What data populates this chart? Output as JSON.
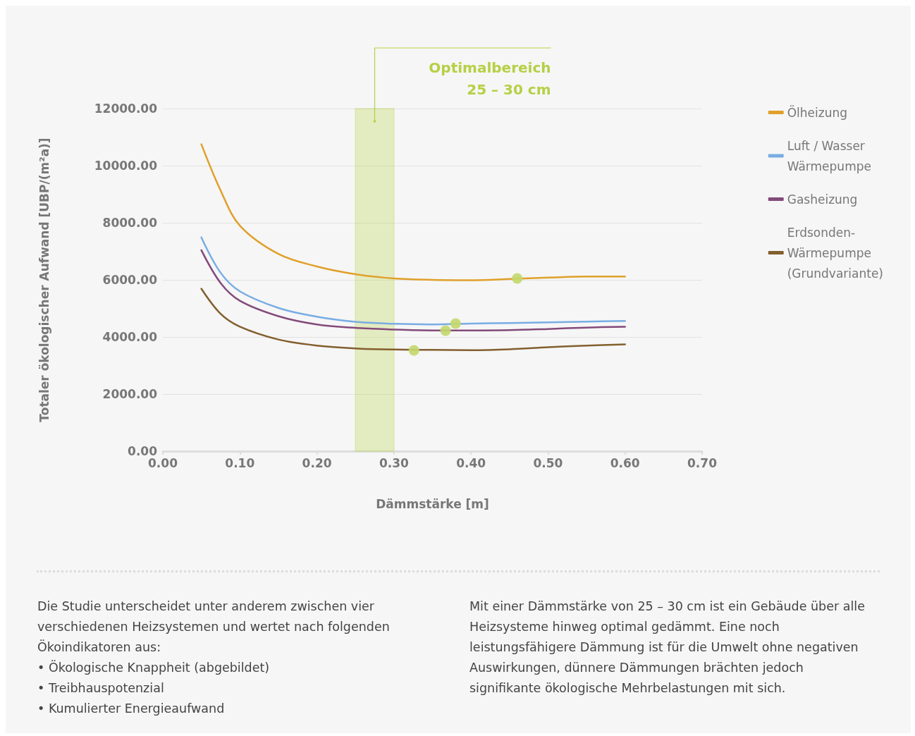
{
  "chart_data": {
    "type": "line",
    "xlabel": "Dämmstärke [m]",
    "ylabel": "Totaler ökologischer Aufwand [UBP/(m²a)]",
    "x": [
      0.05,
      0.075,
      0.1,
      0.15,
      0.2,
      0.25,
      0.3,
      0.35,
      0.4,
      0.45,
      0.5,
      0.55,
      0.6
    ],
    "series": [
      {
        "name": "Ölheizung",
        "color": "#e0a02a",
        "values": [
          10750,
          9130,
          7900,
          6910,
          6470,
          6200,
          6050,
          6000,
          5990,
          6030,
          6080,
          6120,
          6120
        ]
      },
      {
        "name": "Luft / Wasser Wärmepumpe",
        "color": "#78ade3",
        "values": [
          7490,
          6250,
          5600,
          5020,
          4710,
          4530,
          4460,
          4440,
          4470,
          4490,
          4510,
          4540,
          4560
        ]
      },
      {
        "name": "Gasheizung",
        "color": "#834a7a",
        "values": [
          7040,
          5890,
          5270,
          4730,
          4440,
          4320,
          4260,
          4230,
          4230,
          4240,
          4280,
          4330,
          4360
        ]
      },
      {
        "name": "Erdsonden-Wärmepumpe (Grundvariante)",
        "color": "#835f2e",
        "values": [
          5690,
          4810,
          4360,
          3910,
          3700,
          3600,
          3560,
          3550,
          3540,
          3570,
          3640,
          3700,
          3740
        ]
      },
      {
        "type": "scatter",
        "marker": "circle",
        "color": "#c3d86b",
        "x": [
          0.46,
          0.38,
          0.367,
          0.326
        ],
        "values": [
          6050,
          4470,
          4220,
          3530
        ]
      }
    ],
    "xlim": [
      0,
      0.7
    ],
    "xticks": [
      {
        "value": 0,
        "label": "0.00"
      },
      {
        "value": 0.1,
        "label": "0.10"
      },
      {
        "value": 0.2,
        "label": "0.20"
      },
      {
        "value": 0.3,
        "label": "0.30"
      },
      {
        "value": 0.4,
        "label": "0.40"
      },
      {
        "value": 0.5,
        "label": "0.50"
      },
      {
        "value": 0.6,
        "label": "0.60"
      },
      {
        "value": 0.7,
        "label": "0.70"
      }
    ],
    "ylim": [
      0,
      12000
    ],
    "yticks": [
      {
        "value": 0,
        "label": "0.00"
      },
      {
        "value": 2000,
        "label": "2000.00"
      },
      {
        "value": 4000,
        "label": "4000.00"
      },
      {
        "value": 6000,
        "label": "6000.00"
      },
      {
        "value": 8000,
        "label": "8000.00"
      },
      {
        "value": 10000,
        "label": "10000.00"
      },
      {
        "value": 12000,
        "label": "12000.00"
      }
    ],
    "bands": [
      {
        "axis": "x",
        "from": 0.25,
        "to": 0.3,
        "label": "Optimalbereich\n25 – 30 cm",
        "color": "#b5d045"
      }
    ],
    "grid": "y",
    "legend": "top right",
    "marker": "none",
    "line_style": "solid",
    "annotations": [
      "Die Studie unterscheidet unter anderem zwischen vier verschiedenen Heizsystemen und wertet nach folgenden Ökoindikatoren aus:\n•  Ökologische Knappheit (abgebildet)\n•  Treibhauspotenzial\n•  Kumulierter Energieaufwand",
      "Mit einer Dämmstärke von 25 – 30 cm ist ein Gebäude über alle Heizsysteme hinweg optimal gedämmt. Eine noch leistungsfähigere Dämmung ist für die Umwelt ohne negativen Auswirkungen, dünnere Dämmungen brächten jedoch signifikante ökologische Mehrbelastungen mit sich."
    ]
  }
}
